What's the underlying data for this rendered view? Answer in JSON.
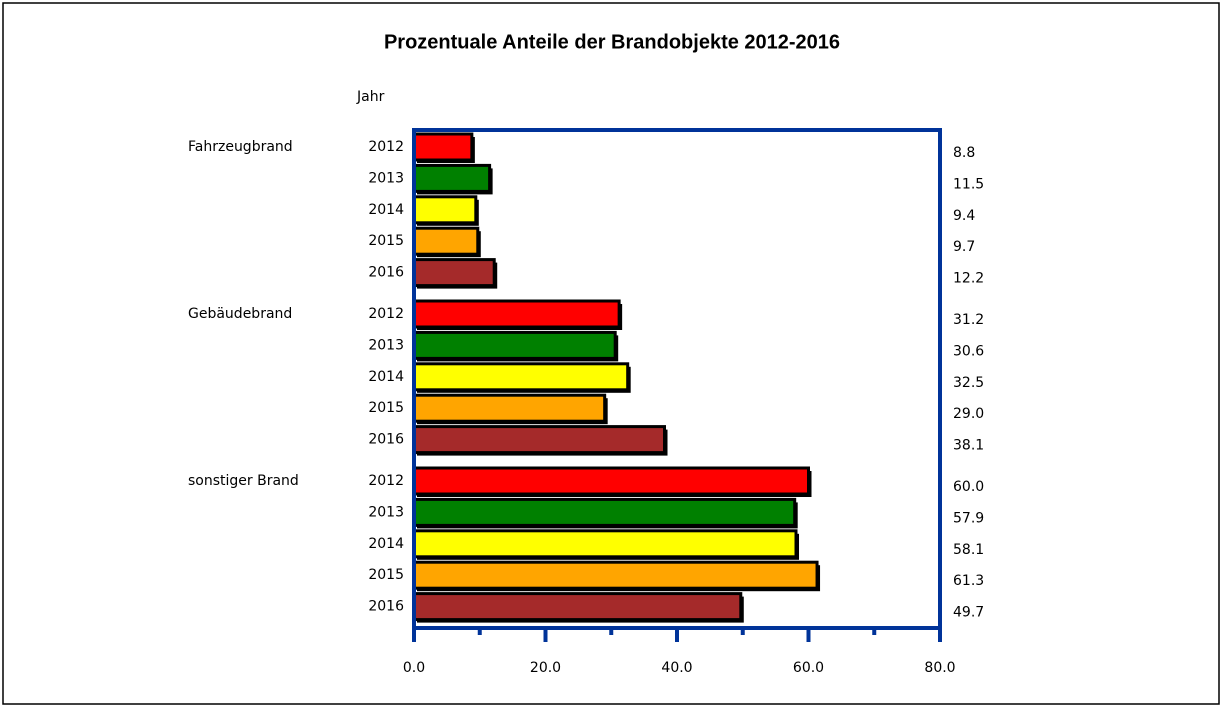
{
  "chart_data": {
    "type": "grouped-hbar",
    "title": "Prozentuale Anteile der Brandobjekte 2012-2016",
    "category_axis_label": "Jahr",
    "categories": [
      "Fahrzeugbrand",
      "Gebäudebrand",
      "sonstiger Brand"
    ],
    "series": [
      {
        "name": "2012",
        "color": "#ff0000",
        "values": [
          8.8,
          31.2,
          60.0
        ],
        "value_labels": [
          "8.8",
          "31.2",
          "60.0"
        ]
      },
      {
        "name": "2013",
        "color": "#008000",
        "values": [
          11.5,
          30.6,
          57.9
        ],
        "value_labels": [
          "11.5",
          "30.6",
          "57.9"
        ]
      },
      {
        "name": "2014",
        "color": "#ffff00",
        "values": [
          9.4,
          32.5,
          58.1
        ],
        "value_labels": [
          "9.4",
          "32.5",
          "58.1"
        ]
      },
      {
        "name": "2015",
        "color": "#ffa500",
        "values": [
          9.7,
          29.0,
          61.3
        ],
        "value_labels": [
          "9.7",
          "29.0",
          "61.3"
        ]
      },
      {
        "name": "2016",
        "color": "#a52a2a",
        "values": [
          12.2,
          38.1,
          49.7
        ],
        "value_labels": [
          "12.2",
          "38.1",
          "49.7"
        ]
      }
    ],
    "xlim": [
      0,
      80
    ],
    "xticks": [
      {
        "value": 0,
        "label": "0.0"
      },
      {
        "value": 20,
        "label": "20.0"
      },
      {
        "value": 40,
        "label": "40.0"
      },
      {
        "value": 60,
        "label": "60.0"
      },
      {
        "value": 80,
        "label": "80.0"
      }
    ],
    "xminor_ticks": [
      10,
      30,
      50,
      70
    ],
    "axis_color": "#003399"
  }
}
